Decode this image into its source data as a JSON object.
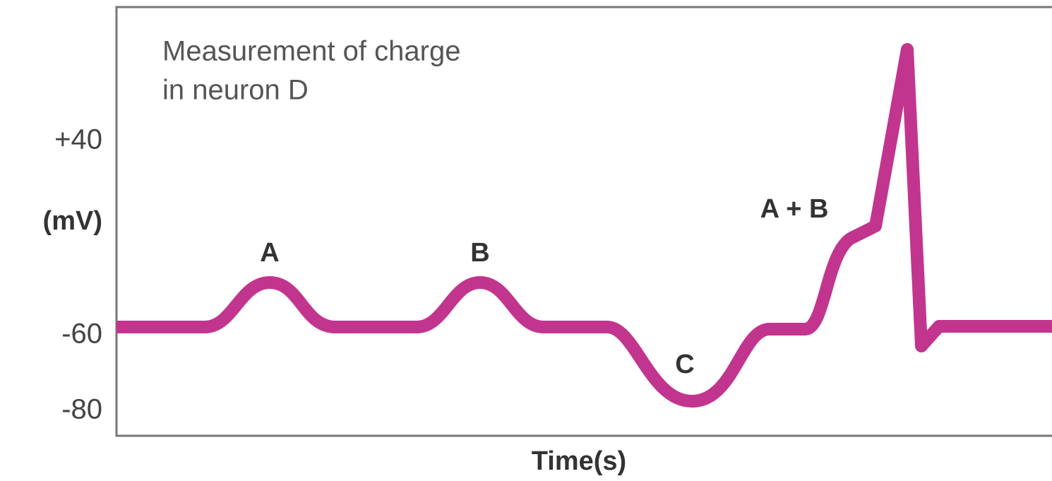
{
  "title_lines": [
    "Measurement of charge",
    "in neuron D"
  ],
  "y_labels": [
    "+40",
    "-60",
    "-80"
  ],
  "y_axis_label": "(mV)",
  "x_axis_label": "Time(s)",
  "annotations": [
    "A",
    "B",
    "C",
    "A + B"
  ]
}
